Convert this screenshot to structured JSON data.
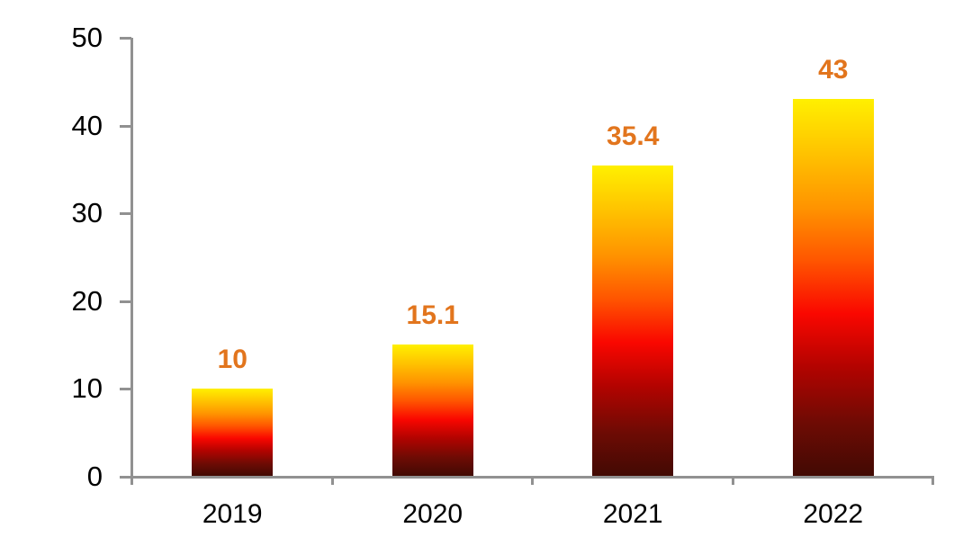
{
  "chart_data": {
    "type": "bar",
    "title": "",
    "xlabel": "",
    "ylabel": "",
    "categories": [
      "2019",
      "2020",
      "2021",
      "2022"
    ],
    "values": [
      10,
      15.1,
      35.4,
      43
    ],
    "data_labels": [
      "10",
      "15.1",
      "35.4",
      "43"
    ],
    "ylim": [
      0,
      50
    ],
    "yticks": [
      0,
      10,
      20,
      30,
      40,
      50
    ],
    "ytick_labels": [
      "0",
      "10",
      "20",
      "30",
      "40",
      "50"
    ],
    "grid": false,
    "legend": null,
    "colors": {
      "bar_gradient_top_to_bottom": [
        "#FFF000",
        "#FFC400",
        "#FF9300",
        "#FF5500",
        "#FA0700",
        "#B30300",
        "#6E0B04",
        "#420A03"
      ],
      "data_label": "#E2751D",
      "axis": "#919191",
      "tick_text": "#000000",
      "background": "#FFFFFF"
    }
  }
}
